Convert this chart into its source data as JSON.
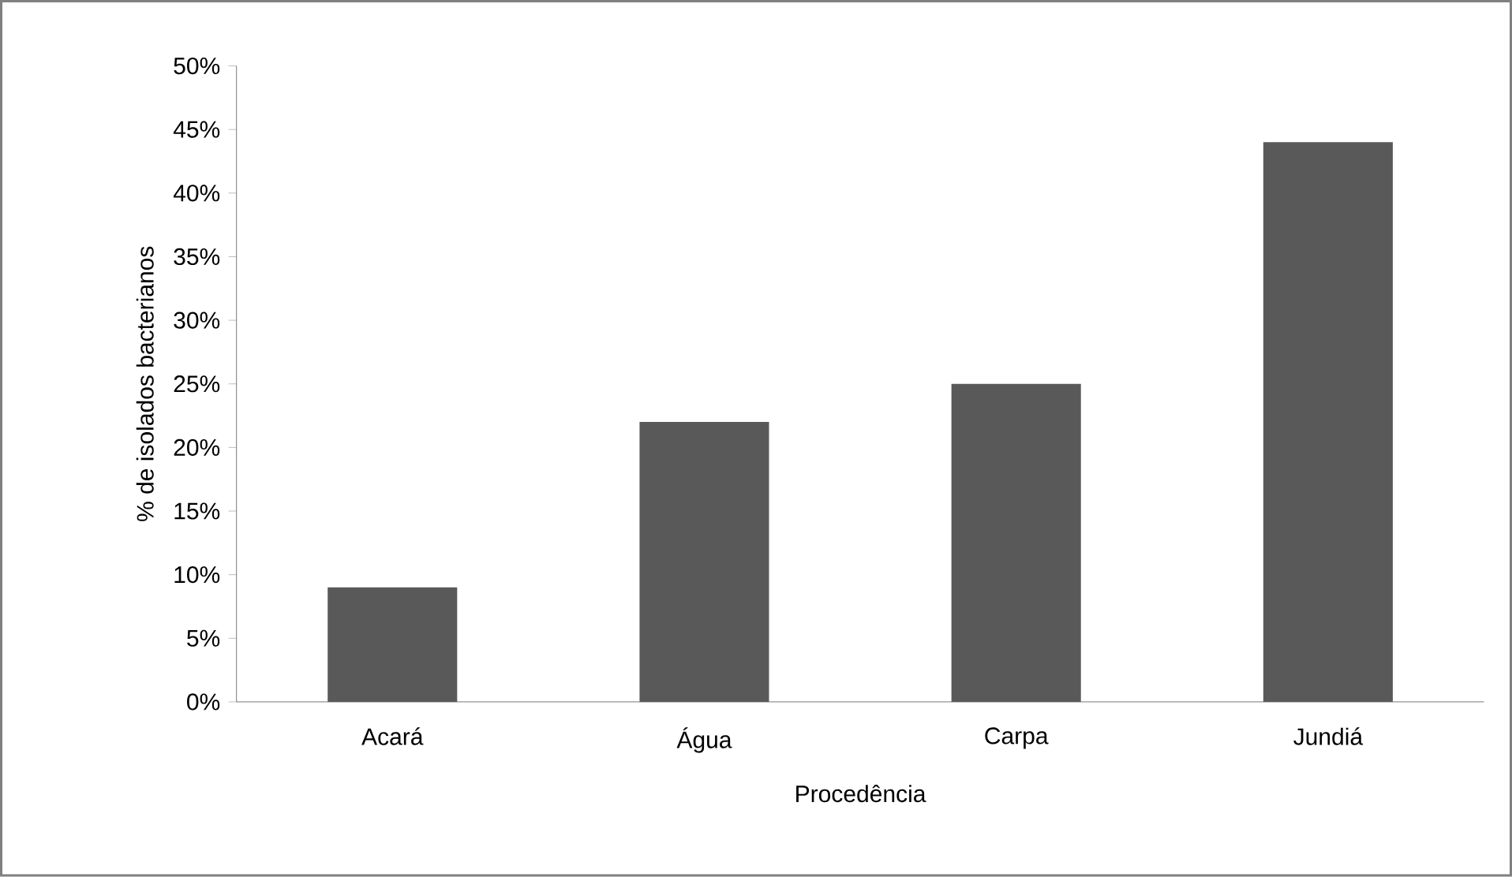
{
  "chart_data": {
    "type": "bar",
    "xlabel": "Procedência",
    "ylabel": "% de isolados bacterianos",
    "categories": [
      "Acará",
      "Água",
      "Carpa",
      "Jundiá"
    ],
    "values": [
      9,
      22,
      25,
      44
    ],
    "color": "#595959",
    "ylim": [
      0,
      50
    ],
    "yticks": [
      {
        "value": 0,
        "label": "0%"
      },
      {
        "value": 5,
        "label": "5%"
      },
      {
        "value": 10,
        "label": "10%"
      },
      {
        "value": 15,
        "label": "15%"
      },
      {
        "value": 20,
        "label": "20%"
      },
      {
        "value": 25,
        "label": "25%"
      },
      {
        "value": 30,
        "label": "30%"
      },
      {
        "value": 35,
        "label": "35%"
      },
      {
        "value": 40,
        "label": "40%"
      },
      {
        "value": 45,
        "label": "45%"
      },
      {
        "value": 50,
        "label": "50%"
      }
    ],
    "grid": false
  }
}
